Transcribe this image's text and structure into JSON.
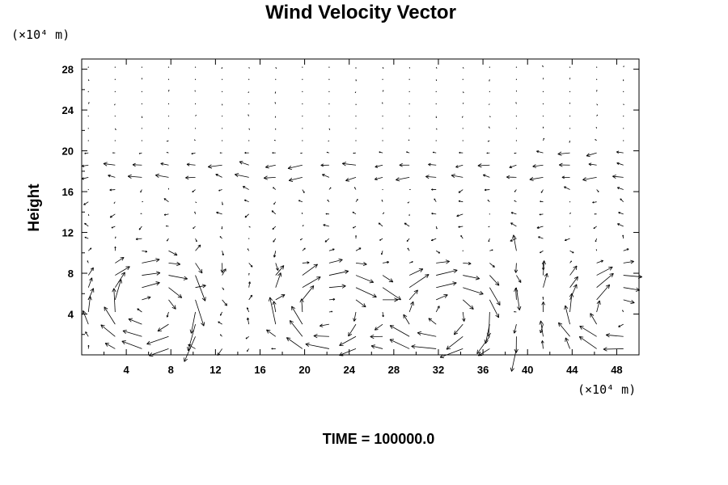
{
  "chart_data": {
    "type": "vector-field",
    "title": "Wind Velocity Vector",
    "ylabel": "Height",
    "y_unit": "(×10⁴ m)",
    "x_unit": "(×10⁴ m)",
    "xlim": [
      0,
      50
    ],
    "ylim": [
      0,
      29
    ],
    "xticks": [
      4,
      8,
      12,
      16,
      20,
      24,
      28,
      32,
      36,
      40,
      44,
      48
    ],
    "yticks": [
      4,
      8,
      12,
      16,
      20,
      24,
      28
    ],
    "grid": false,
    "vortex_centers": [
      {
        "x": 6.5,
        "y": 4.5,
        "rotation": "clockwise"
      },
      {
        "x": 22.5,
        "y": 4.0,
        "rotation": "clockwise"
      },
      {
        "x": 32.5,
        "y": 4.0,
        "rotation": "clockwise"
      },
      {
        "x": 48.5,
        "y": 4.0,
        "rotation": "clockwise"
      }
    ],
    "vertical_jets_x": [
      10,
      12,
      16,
      18,
      26,
      39,
      41
    ],
    "upper_westward_flow_y": [
      17,
      19,
      20
    ],
    "annotation": "TIME = 100000.0"
  }
}
